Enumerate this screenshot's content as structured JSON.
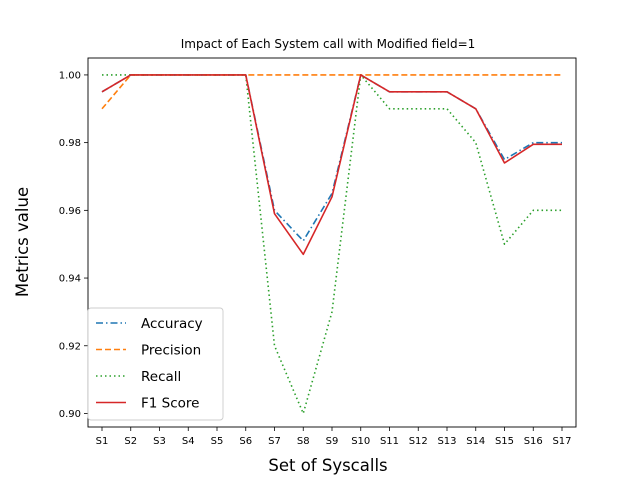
{
  "chart_data": {
    "type": "line",
    "title": "Impact of Each System call with Modified field=1",
    "xlabel": "Set of Syscalls",
    "ylabel": "Metrics value",
    "categories": [
      "S1",
      "S2",
      "S3",
      "S4",
      "S5",
      "S6",
      "S7",
      "S8",
      "S9",
      "S10",
      "S11",
      "S12",
      "S13",
      "S14",
      "S15",
      "S16",
      "S17"
    ],
    "ylim": [
      0.896,
      1.005
    ],
    "yticks": [
      "0.90",
      "0.92",
      "0.94",
      "0.96",
      "0.98",
      "1.00"
    ],
    "grid": false,
    "legend_position": "lower-left",
    "series": [
      {
        "name": "Accuracy",
        "color": "#1f77b4",
        "style": "dashdot",
        "values": [
          0.995,
          1.0,
          1.0,
          1.0,
          1.0,
          1.0,
          0.96,
          0.951,
          0.965,
          1.0,
          0.995,
          0.995,
          0.995,
          0.99,
          0.975,
          0.98,
          0.98
        ]
      },
      {
        "name": "Precision",
        "color": "#ff7f0e",
        "style": "dashed",
        "values": [
          0.99,
          1.0,
          1.0,
          1.0,
          1.0,
          1.0,
          1.0,
          1.0,
          1.0,
          1.0,
          1.0,
          1.0,
          1.0,
          1.0,
          1.0,
          1.0,
          1.0
        ]
      },
      {
        "name": "Recall",
        "color": "#2ca02c",
        "style": "dotted",
        "values": [
          1.0,
          1.0,
          1.0,
          1.0,
          1.0,
          1.0,
          0.92,
          0.9,
          0.93,
          1.0,
          0.99,
          0.99,
          0.99,
          0.98,
          0.95,
          0.96,
          0.96
        ]
      },
      {
        "name": "F1 Score",
        "color": "#d62728",
        "style": "solid",
        "values": [
          0.995,
          1.0,
          1.0,
          1.0,
          1.0,
          1.0,
          0.959,
          0.947,
          0.964,
          1.0,
          0.995,
          0.995,
          0.995,
          0.99,
          0.974,
          0.9795,
          0.9795
        ]
      }
    ]
  }
}
